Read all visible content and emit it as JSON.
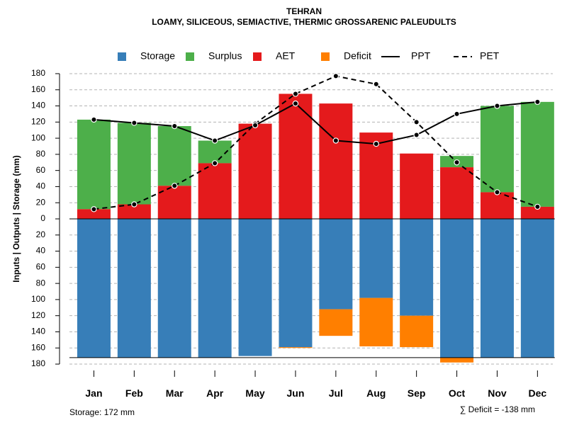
{
  "chart_data": {
    "type": "bar",
    "title": "TEHRAN",
    "subtitle": "LOAMY, SILICEOUS, SEMIACTIVE, THERMIC GROSSARENIC PALEUDULTS",
    "ylabel": "Inputs | Outputs | Storage    (mm)",
    "ylim": [
      -180,
      180
    ],
    "y_tick_labels": [
      "180",
      "160",
      "140",
      "120",
      "100",
      "80",
      "60",
      "40",
      "20",
      "0",
      "20",
      "40",
      "60",
      "80",
      "100",
      "120",
      "140",
      "160",
      "180"
    ],
    "y_tick_values": [
      180,
      160,
      140,
      120,
      100,
      80,
      60,
      40,
      20,
      0,
      -20,
      -40,
      -60,
      -80,
      -100,
      -120,
      -140,
      -160,
      -180
    ],
    "categories": [
      "Jan",
      "Feb",
      "Mar",
      "Apr",
      "May",
      "Jun",
      "Jul",
      "Aug",
      "Sep",
      "Oct",
      "Nov",
      "Dec"
    ],
    "legend": {
      "position": "top",
      "items": [
        {
          "label": "Storage",
          "kind": "box",
          "color": "#377eb8"
        },
        {
          "label": "Surplus",
          "kind": "box",
          "color": "#4daf4a"
        },
        {
          "label": "AET",
          "kind": "box",
          "color": "#e41a1c"
        },
        {
          "label": "Deficit",
          "kind": "box",
          "color": "#ff7f00"
        },
        {
          "label": "PPT",
          "kind": "line-solid",
          "color": "#000000"
        },
        {
          "label": "PET",
          "kind": "line-dashed",
          "color": "#000000"
        }
      ]
    },
    "series": [
      {
        "name": "AET",
        "color": "#e41a1c",
        "values": [
          12,
          18,
          41,
          69,
          118,
          155,
          143,
          107,
          81,
          64,
          33,
          15
        ]
      },
      {
        "name": "Surplus",
        "color": "#4daf4a",
        "values": [
          111,
          101,
          74,
          28,
          0,
          0,
          0,
          0,
          0,
          14,
          107,
          130
        ]
      },
      {
        "name": "Storage",
        "color": "#377eb8",
        "values": [
          172,
          172,
          172,
          172,
          170,
          159,
          112,
          98,
          120,
          172,
          172,
          172
        ]
      },
      {
        "name": "Deficit",
        "color": "#ff7f00",
        "values": [
          0,
          0,
          0,
          0,
          0,
          1,
          33,
          60,
          39,
          6,
          0,
          0
        ]
      },
      {
        "name": "PPT",
        "color": "#000000",
        "style": "solid",
        "values": [
          123,
          119,
          115,
          97,
          116,
          143,
          97,
          93,
          104,
          130,
          140,
          145
        ]
      },
      {
        "name": "PET",
        "color": "#000000",
        "style": "dashed",
        "values": [
          12,
          18,
          41,
          69,
          118,
          155,
          177,
          167,
          120,
          70,
          33,
          15
        ]
      }
    ],
    "storage_capacity": 172,
    "grid": true
  },
  "footer": {
    "storage_text": "Storage: 172 mm",
    "deficit_text": "∑ Deficit = -138 mm"
  }
}
